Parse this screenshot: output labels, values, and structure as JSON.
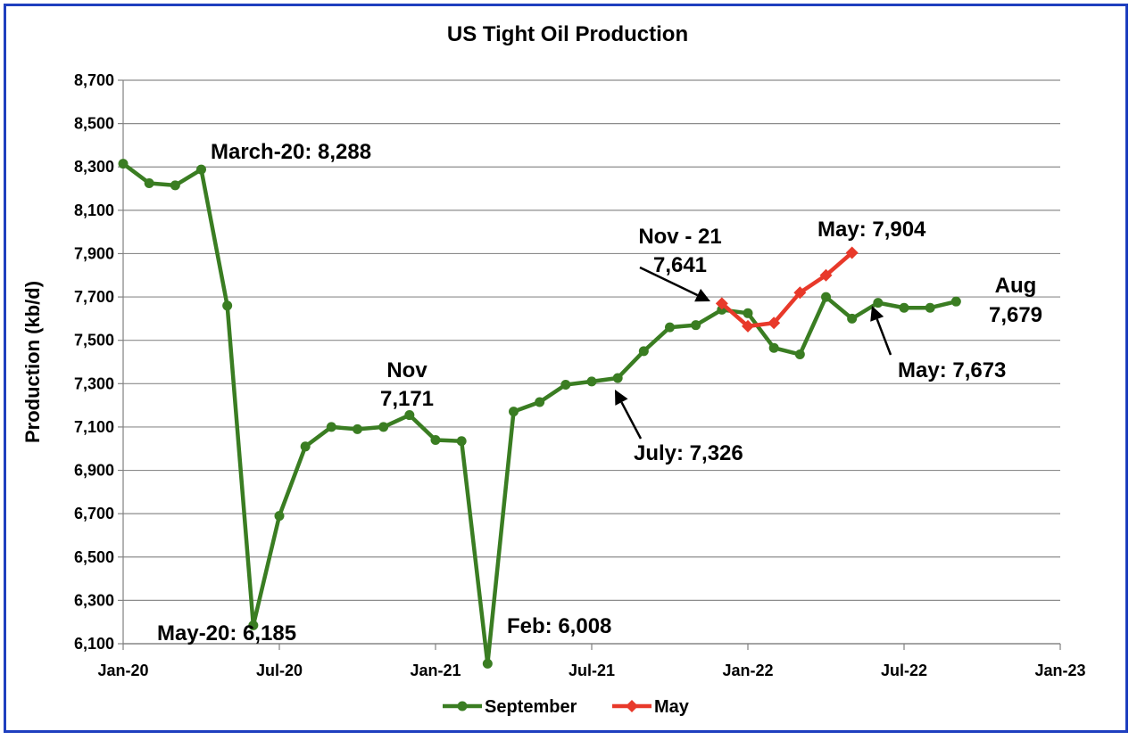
{
  "chart_data": {
    "type": "line",
    "title": "US Tight Oil Production",
    "xlabel": "",
    "ylabel": "Production (kb/d)",
    "ylim": [
      6100,
      8700
    ],
    "yticks": [
      6100,
      6300,
      6500,
      6700,
      6900,
      7100,
      7300,
      7500,
      7700,
      7900,
      8100,
      8300,
      8500,
      8700
    ],
    "ytick_labels": [
      "6,100",
      "6,300",
      "6,500",
      "6,700",
      "6,900",
      "7,100",
      "7,300",
      "7,500",
      "7,700",
      "7,900",
      "8,100",
      "8,300",
      "8,500",
      "8,700"
    ],
    "xlim": [
      "2020-01",
      "2023-01"
    ],
    "xticks": [
      "2020-01",
      "2020-07",
      "2021-01",
      "2021-07",
      "2022-01",
      "2022-07",
      "2023-01"
    ],
    "xtick_labels": [
      "Jan-20",
      "Jul-20",
      "Jan-21",
      "Jul-21",
      "Jan-22",
      "Jul-22",
      "Jan-23"
    ],
    "grid": true,
    "legend_position": "bottom",
    "series": [
      {
        "name": "September",
        "color": "#3a7d22",
        "marker": "circle",
        "x": [
          "2020-01",
          "2020-02",
          "2020-03",
          "2020-04",
          "2020-05",
          "2020-06",
          "2020-07",
          "2020-08",
          "2020-09",
          "2020-10",
          "2020-11",
          "2020-12",
          "2021-01",
          "2021-02",
          "2021-03",
          "2021-04",
          "2021-05",
          "2021-06",
          "2021-07",
          "2021-08",
          "2021-09",
          "2021-10",
          "2021-11",
          "2021-12",
          "2022-01",
          "2022-02",
          "2022-03",
          "2022-04",
          "2022-05",
          "2022-06",
          "2022-07",
          "2022-08",
          "2022-09"
        ],
        "values": [
          8315,
          8225,
          8215,
          8288,
          7660,
          6185,
          6690,
          7010,
          7100,
          7090,
          7100,
          7155,
          7040,
          7035,
          6008,
          7171,
          7215,
          7295,
          7310,
          7326,
          7450,
          7560,
          7570,
          7641,
          7625,
          7465,
          7435,
          7700,
          7600,
          7673,
          7650,
          7650,
          7679
        ]
      },
      {
        "name": "May",
        "color": "#e8392a",
        "marker": "diamond",
        "x": [
          "2021-12",
          "2022-01",
          "2022-02",
          "2022-03",
          "2022-04",
          "2022-05"
        ],
        "values": [
          7670,
          7565,
          7580,
          7720,
          7800,
          7904
        ]
      }
    ],
    "annotations": [
      {
        "lines": [
          "March-20: 8,288"
        ]
      },
      {
        "lines": [
          "May-20: 6,185"
        ]
      },
      {
        "lines": [
          "Nov",
          "7,171"
        ]
      },
      {
        "lines": [
          "Feb: 6,008"
        ]
      },
      {
        "lines": [
          "July: 7,326"
        ]
      },
      {
        "lines": [
          "Nov - 21",
          "7,641"
        ]
      },
      {
        "lines": [
          "May: 7,904"
        ]
      },
      {
        "lines": [
          "Aug",
          "7,679"
        ]
      },
      {
        "lines": [
          "May: 7,673"
        ]
      }
    ]
  }
}
